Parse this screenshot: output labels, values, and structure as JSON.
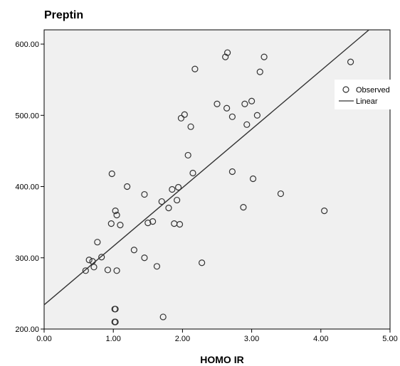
{
  "chart_data": {
    "type": "scatter",
    "title": "Preptin",
    "xlabel": "HOMO IR",
    "ylabel": "",
    "xlim": [
      0,
      5
    ],
    "ylim": [
      200,
      620
    ],
    "x_ticks": [
      "0.00",
      "1.00",
      "2.00",
      "3.00",
      "4.00",
      "5.00"
    ],
    "y_ticks": [
      "200.00",
      "300.00",
      "400.00",
      "500.00",
      "600.00"
    ],
    "grid": false,
    "plot_background": "#f0f0f0",
    "point_color": "#333333",
    "line_color": "#333333",
    "legend": {
      "placement": "right",
      "entries": [
        "Observed",
        "Linear"
      ]
    },
    "series": [
      {
        "name": "Observed",
        "kind": "points",
        "points": [
          [
            0.6,
            282
          ],
          [
            0.65,
            297
          ],
          [
            0.7,
            295
          ],
          [
            0.72,
            287
          ],
          [
            0.77,
            322
          ],
          [
            0.83,
            301
          ],
          [
            0.92,
            283
          ],
          [
            0.97,
            348
          ],
          [
            0.98,
            418
          ],
          [
            1.02,
            228
          ],
          [
            1.03,
            228
          ],
          [
            1.02,
            210
          ],
          [
            1.03,
            210
          ],
          [
            1.03,
            366
          ],
          [
            1.05,
            360
          ],
          [
            1.05,
            282
          ],
          [
            1.1,
            346
          ],
          [
            1.2,
            400
          ],
          [
            1.3,
            311
          ],
          [
            1.45,
            300
          ],
          [
            1.45,
            389
          ],
          [
            1.5,
            349
          ],
          [
            1.57,
            351
          ],
          [
            1.63,
            288
          ],
          [
            1.7,
            379
          ],
          [
            1.72,
            217
          ],
          [
            1.8,
            370
          ],
          [
            1.85,
            396
          ],
          [
            1.88,
            348
          ],
          [
            1.92,
            381
          ],
          [
            1.94,
            399
          ],
          [
            1.96,
            347
          ],
          [
            1.98,
            496
          ],
          [
            2.03,
            501
          ],
          [
            2.08,
            444
          ],
          [
            2.12,
            484
          ],
          [
            2.15,
            419
          ],
          [
            2.18,
            565
          ],
          [
            2.28,
            293
          ],
          [
            2.5,
            516
          ],
          [
            2.62,
            582
          ],
          [
            2.64,
            510
          ],
          [
            2.65,
            588
          ],
          [
            2.72,
            498
          ],
          [
            2.72,
            421
          ],
          [
            2.88,
            371
          ],
          [
            2.9,
            516
          ],
          [
            2.93,
            487
          ],
          [
            3.0,
            520
          ],
          [
            3.02,
            411
          ],
          [
            3.08,
            500
          ],
          [
            3.12,
            561
          ],
          [
            3.18,
            582
          ],
          [
            3.42,
            390
          ],
          [
            4.05,
            366
          ],
          [
            4.43,
            575
          ]
        ]
      },
      {
        "name": "Linear",
        "kind": "fit_line",
        "intercept": 234,
        "slope": 82.2
      }
    ]
  }
}
